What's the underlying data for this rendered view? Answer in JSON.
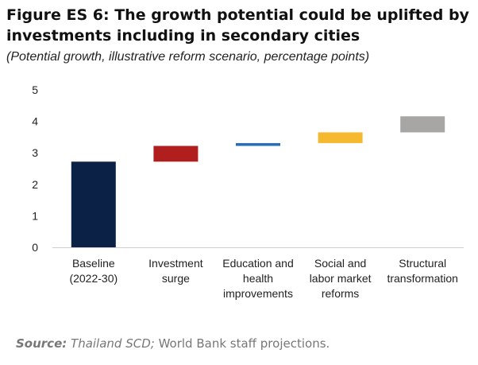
{
  "figure": {
    "title": "Figure ES 6: The growth potential could be uplifted by investments including in secondary cities",
    "subtitle": "(Potential growth, illustrative reform scenario, percentage points)"
  },
  "source": {
    "label": "Source:",
    "italic": "Thailand SCD;",
    "rest": " World Bank staff projections."
  },
  "chart_data": {
    "type": "bar",
    "subtype": "waterfall",
    "title": "",
    "xlabel": "",
    "ylabel": "",
    "ylim": [
      0,
      5
    ],
    "yticks": [
      0,
      1,
      2,
      3,
      4,
      5
    ],
    "grid": false,
    "legend": "none",
    "categories": [
      {
        "label_lines": [
          "Baseline",
          "(2022-30)"
        ]
      },
      {
        "label_lines": [
          "Investment",
          "surge"
        ]
      },
      {
        "label_lines": [
          "Education and",
          "health",
          "improvements"
        ]
      },
      {
        "label_lines": [
          "Social and",
          "labor market",
          "reforms"
        ]
      },
      {
        "label_lines": [
          "Structural",
          "transformation"
        ]
      }
    ],
    "bars": [
      {
        "start": 0,
        "end": 2.72,
        "color": "#0c2146"
      },
      {
        "start": 2.72,
        "end": 3.22,
        "color": "#b01e1e"
      },
      {
        "start": 3.22,
        "end": 3.31,
        "color": "#2a6db5"
      },
      {
        "start": 3.31,
        "end": 3.65,
        "color": "#f5b82e"
      },
      {
        "start": 3.65,
        "end": 4.16,
        "color": "#a8a5a5"
      }
    ]
  }
}
